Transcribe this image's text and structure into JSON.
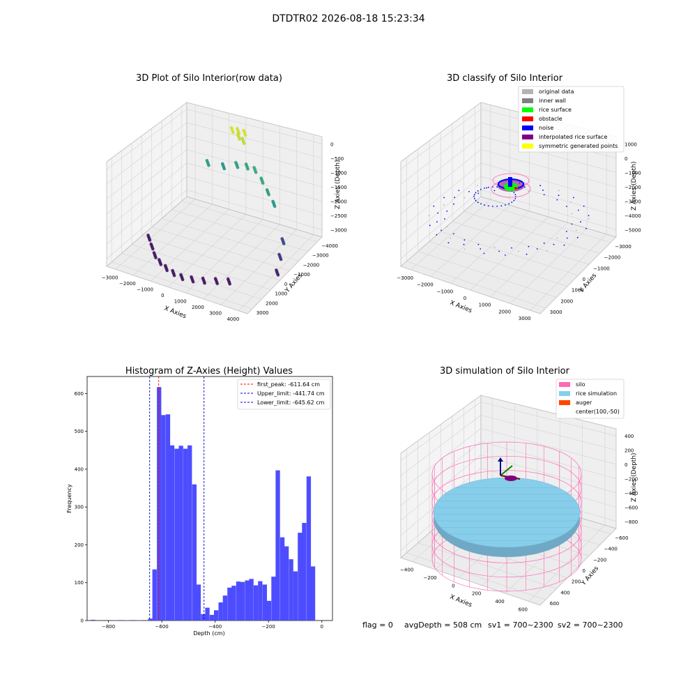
{
  "page_title": "DTDTR02 2026-08-18 15:23:34",
  "status_line": {
    "flag": "flag = 0",
    "avg_depth": "avgDepth = 508 cm",
    "sv1": "sv1 = 700~2300",
    "sv2": "sv2 = 700~2300"
  },
  "colors": {
    "original": "#b3b3b3",
    "inner_wall": "#808080",
    "rice_surface": "#00ff00",
    "obstacle": "#ff0000",
    "noise": "#0000ff",
    "interpolated": "#800080",
    "symmetric": "#ffff00",
    "silo": "#ff69b4",
    "rice_sim": "#87ceeb",
    "auger": "#ff4500",
    "hist_bar": "#4d4dff",
    "first_peak_line": "#ff0000",
    "limit_line": "#0000cc"
  },
  "chart_data": [
    {
      "type": "scatter",
      "title": "3D Plot of Silo Interior(row data)",
      "xlabel": "X Axies",
      "ylabel": "Y Axies",
      "zlabel": "Z Axies (Depth)",
      "x_ticks": [
        "−3000",
        "−2000",
        "−1000",
        "0",
        "1000",
        "2000",
        "3000",
        "4000"
      ],
      "y_ticks": [
        "−4000",
        "−3000",
        "−2000",
        "−1000",
        "0",
        "1000",
        "2000",
        "3000"
      ],
      "z_ticks": [
        "0",
        "−500",
        "−1000",
        "−1500",
        "−2000",
        "−2500",
        "−3000"
      ],
      "xlim": [
        -3500,
        4000
      ],
      "ylim": [
        -4000,
        3500
      ],
      "zlim": [
        -3300,
        0
      ],
      "color_scale": "viridis by depth",
      "groups": [
        {
          "x": [
            -500,
            -300,
            -100,
            100,
            200
          ],
          "y": [
            2400,
            2600,
            2300,
            2500,
            2200
          ],
          "z": [
            -200,
            -250,
            -300,
            -200,
            -350
          ]
        },
        {
          "x": [
            -1800,
            -1200,
            -600,
            0,
            600,
            1200,
            1800,
            2400
          ],
          "y": [
            2400,
            2800,
            3000,
            2900,
            2600,
            2200,
            1700,
            1200
          ],
          "z": [
            -1500,
            -1600,
            -1500,
            -1400,
            -1300,
            -1400,
            -1500,
            -1600
          ]
        },
        {
          "x": [
            -3000,
            -2500,
            -2000,
            -1500,
            -1000,
            -500,
            0,
            500,
            1000,
            1500,
            2000
          ],
          "y": [
            -1000,
            -1600,
            -2200,
            -2600,
            -2900,
            -3100,
            -3200,
            -3100,
            -2900,
            -2600,
            -2300
          ],
          "z": [
            -3100,
            -3100,
            -3100,
            -3100,
            -3100,
            -3100,
            -3100,
            -3100,
            -3100,
            -3100,
            -3100
          ]
        },
        {
          "x": [
            3000,
            3300,
            3600
          ],
          "y": [
            1000,
            200,
            -600
          ],
          "z": [
            -2600,
            -2800,
            -3000
          ]
        }
      ]
    },
    {
      "type": "scatter",
      "title": "3D classify of Silo Interior",
      "xlabel": "X Axies",
      "ylabel": "Y Axies",
      "zlabel": "Z Axies (Depth)",
      "x_ticks": [
        "−3000",
        "−2000",
        "−1000",
        "0",
        "1000",
        "2000",
        "3000"
      ],
      "y_ticks": [
        "−3000",
        "−2000",
        "−1000",
        "0",
        "1000",
        "2000",
        "3000"
      ],
      "z_ticks": [
        "1000",
        "0",
        "−1000",
        "−2000",
        "−3000",
        "−4000",
        "−5000"
      ],
      "legend": [
        "original data",
        "inner wall",
        "rice surface",
        "obstacle",
        "noise",
        "interpolated rice surface",
        "symmetric generated points"
      ],
      "legend_placement": "top-right"
    },
    {
      "type": "bar",
      "title": "Histogram of Z-Axies (Height) Values",
      "xlabel": "Depth (cm)",
      "ylabel": "Frequency",
      "xlim": [
        -880,
        40
      ],
      "ylim": [
        0,
        645
      ],
      "x_ticks": [
        -800,
        -600,
        -400,
        -200,
        0
      ],
      "x_tick_labels": [
        "−800",
        "−600",
        "−400",
        "−200",
        "0"
      ],
      "y_ticks": [
        0,
        100,
        200,
        300,
        400,
        500,
        600
      ],
      "y_tick_labels": [
        "0",
        "100",
        "200",
        "300",
        "400",
        "500",
        "600"
      ],
      "bin_width": 16.5,
      "bins": [
        {
          "x": -858,
          "v": 2
        },
        {
          "x": -775,
          "v": 1
        },
        {
          "x": -730,
          "v": 1
        },
        {
          "x": -685,
          "v": 1
        },
        {
          "x": -643,
          "v": 5
        },
        {
          "x": -627,
          "v": 135
        },
        {
          "x": -610,
          "v": 617
        },
        {
          "x": -594,
          "v": 543
        },
        {
          "x": -577,
          "v": 545
        },
        {
          "x": -561,
          "v": 463
        },
        {
          "x": -544,
          "v": 454
        },
        {
          "x": -528,
          "v": 462
        },
        {
          "x": -511,
          "v": 454
        },
        {
          "x": -495,
          "v": 463
        },
        {
          "x": -478,
          "v": 360
        },
        {
          "x": -462,
          "v": 95
        },
        {
          "x": -445,
          "v": 17
        },
        {
          "x": -429,
          "v": 34
        },
        {
          "x": -412,
          "v": 15
        },
        {
          "x": -396,
          "v": 27
        },
        {
          "x": -379,
          "v": 48
        },
        {
          "x": -363,
          "v": 66
        },
        {
          "x": -346,
          "v": 87
        },
        {
          "x": -330,
          "v": 92
        },
        {
          "x": -313,
          "v": 103
        },
        {
          "x": -297,
          "v": 102
        },
        {
          "x": -280,
          "v": 106
        },
        {
          "x": -264,
          "v": 110
        },
        {
          "x": -247,
          "v": 93
        },
        {
          "x": -231,
          "v": 104
        },
        {
          "x": -214,
          "v": 95
        },
        {
          "x": -198,
          "v": 52
        },
        {
          "x": -181,
          "v": 116
        },
        {
          "x": -165,
          "v": 397
        },
        {
          "x": -148,
          "v": 220
        },
        {
          "x": -132,
          "v": 196
        },
        {
          "x": -115,
          "v": 162
        },
        {
          "x": -99,
          "v": 130
        },
        {
          "x": -82,
          "v": 232
        },
        {
          "x": -66,
          "v": 258
        },
        {
          "x": -49,
          "v": 381
        },
        {
          "x": -33,
          "v": 143
        }
      ],
      "lines": [
        {
          "label": "first_peak: -611.64 cm",
          "x": -611.64,
          "color_key": "first_peak_line"
        },
        {
          "label": "Upper_limit: -441.74 cm",
          "x": -441.74,
          "color_key": "limit_line"
        },
        {
          "label": "Lower_limit: -645.62 cm",
          "x": -645.62,
          "color_key": "limit_line"
        }
      ],
      "legend_placement": "top-right"
    },
    {
      "type": "surface",
      "title": "3D simulation of Silo Interior",
      "xlabel": "X Axies",
      "ylabel": "Y Axies",
      "zlabel": "Z Axies (Depth)",
      "x_ticks": [
        "−400",
        "−200",
        "0",
        "200",
        "400",
        "600"
      ],
      "y_ticks": [
        "−600",
        "−400",
        "−200",
        "0",
        "200",
        "400",
        "600"
      ],
      "z_ticks": [
        "400",
        "200",
        "0",
        "−200",
        "−400",
        "−600",
        "−800"
      ],
      "legend": [
        "silo",
        "rice simulation",
        "auger",
        "center(100,-50)"
      ],
      "legend_placement": "top-right"
    }
  ]
}
